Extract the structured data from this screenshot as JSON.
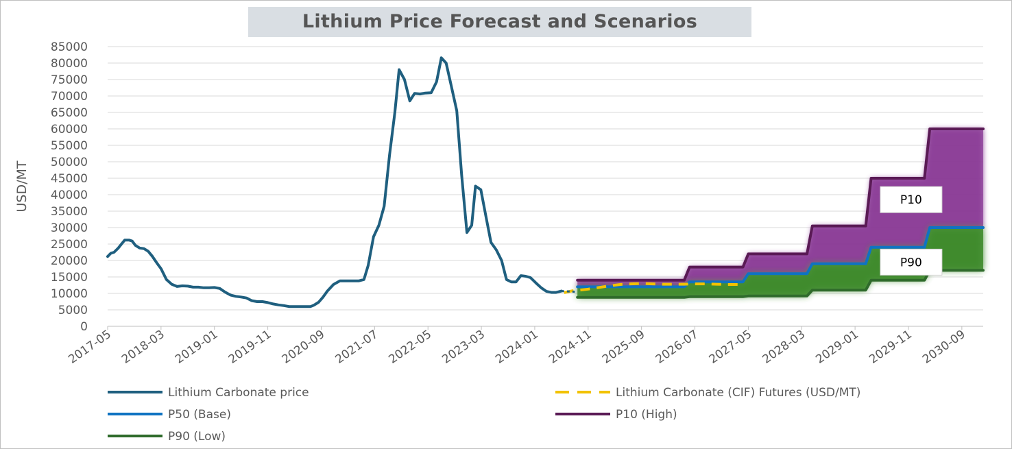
{
  "chart_data": {
    "type": "line",
    "title": "Lithium Price Forecast and Scenarios",
    "xlabel": "",
    "ylabel": "USD/MT",
    "ylim": [
      0,
      85000
    ],
    "yticks": [
      0,
      5000,
      10000,
      15000,
      20000,
      25000,
      30000,
      35000,
      40000,
      45000,
      50000,
      55000,
      60000,
      65000,
      70000,
      75000,
      80000,
      85000
    ],
    "categories": [
      "2017-05",
      "2018-03",
      "2019-01",
      "2019-11",
      "2020-09",
      "2021-07",
      "2022-05",
      "2023-03",
      "2024-01",
      "2024-11",
      "2025-09",
      "2026-07",
      "2027-05",
      "2028-03",
      "2029-01",
      "2029-11",
      "2030-09"
    ],
    "grid": true,
    "colors": {
      "spot": "#1f5f7f",
      "futures": "#f2c200",
      "p50": "#0f73c2",
      "p10": "#5a1a55",
      "p90": "#2f6b2b",
      "p10_band": "#8a3a96",
      "p90_band": "#3d8a2a"
    },
    "series": [
      {
        "name": "Lithium Carbonate price",
        "key": "spot",
        "points": [
          [
            0,
            21200
          ],
          [
            0.6,
            22200
          ],
          [
            1.2,
            22500
          ],
          [
            2.0,
            23800
          ],
          [
            2.6,
            25000
          ],
          [
            3.2,
            26200
          ],
          [
            4.0,
            26200
          ],
          [
            4.6,
            25900
          ],
          [
            5.2,
            24600
          ],
          [
            6.0,
            23800
          ],
          [
            6.8,
            23600
          ],
          [
            7.6,
            22800
          ],
          [
            8.4,
            21200
          ],
          [
            9.2,
            19300
          ],
          [
            10.0,
            17500
          ],
          [
            11.0,
            14200
          ],
          [
            12.0,
            12800
          ],
          [
            13.0,
            12100
          ],
          [
            14.0,
            12300
          ],
          [
            15.0,
            12200
          ],
          [
            16.0,
            11900
          ],
          [
            17.0,
            11900
          ],
          [
            18.0,
            11700
          ],
          [
            19.0,
            11700
          ],
          [
            20.0,
            11800
          ],
          [
            21.0,
            11500
          ],
          [
            22.0,
            10400
          ],
          [
            23.0,
            9500
          ],
          [
            24.0,
            9100
          ],
          [
            25.0,
            8900
          ],
          [
            26.0,
            8600
          ],
          [
            27.0,
            7800
          ],
          [
            28.0,
            7500
          ],
          [
            29.0,
            7500
          ],
          [
            30.0,
            7200
          ],
          [
            31.0,
            6800
          ],
          [
            32.0,
            6500
          ],
          [
            33.0,
            6300
          ],
          [
            34.0,
            6000
          ],
          [
            35.0,
            6000
          ],
          [
            36.0,
            6000
          ],
          [
            37.0,
            6000
          ],
          [
            38.0,
            6000
          ],
          [
            38.6,
            6400
          ],
          [
            39.5,
            7300
          ],
          [
            40.3,
            8800
          ],
          [
            41.2,
            10800
          ],
          [
            42.3,
            12700
          ],
          [
            43.5,
            13800
          ],
          [
            44.5,
            13800
          ],
          [
            46.0,
            13800
          ],
          [
            47.0,
            13800
          ],
          [
            48.0,
            14200
          ],
          [
            48.8,
            18500
          ],
          [
            49.8,
            27200
          ],
          [
            50.8,
            30700
          ],
          [
            51.8,
            36500
          ],
          [
            52.8,
            52000
          ],
          [
            53.8,
            65000
          ],
          [
            54.6,
            78000
          ],
          [
            55.6,
            75000
          ],
          [
            56.6,
            68500
          ],
          [
            57.5,
            70800
          ],
          [
            58.5,
            70600
          ],
          [
            59.5,
            70900
          ],
          [
            60.6,
            71000
          ],
          [
            61.6,
            74300
          ],
          [
            62.5,
            81600
          ],
          [
            63.4,
            80000
          ],
          [
            64.3,
            73500
          ],
          [
            65.4,
            65500
          ],
          [
            66.3,
            46000
          ],
          [
            67.3,
            28500
          ],
          [
            68.2,
            30700
          ],
          [
            68.9,
            42600
          ],
          [
            69.9,
            41500
          ],
          [
            70.9,
            33000
          ],
          [
            71.8,
            25500
          ],
          [
            72.8,
            23200
          ],
          [
            73.8,
            20000
          ],
          [
            74.7,
            14200
          ],
          [
            75.6,
            13500
          ],
          [
            76.5,
            13500
          ],
          [
            77.4,
            15400
          ],
          [
            78.3,
            15200
          ],
          [
            79.2,
            14800
          ],
          [
            80.2,
            13200
          ],
          [
            81.2,
            11700
          ],
          [
            82.2,
            10600
          ],
          [
            83.1,
            10300
          ],
          [
            84.0,
            10300
          ],
          [
            85.0,
            10700
          ]
        ]
      },
      {
        "name": "Lithium Carbonate (CIF) Futures (USD/MT)",
        "key": "futures",
        "dashed": true,
        "points": [
          [
            85.5,
            10200
          ],
          [
            86.5,
            10600
          ],
          [
            87.5,
            10900
          ],
          [
            88.5,
            11000
          ],
          [
            90,
            11300
          ],
          [
            92,
            11800
          ],
          [
            94,
            12300
          ],
          [
            96,
            12700
          ],
          [
            98,
            12900
          ],
          [
            100,
            13000
          ],
          [
            102,
            12900
          ],
          [
            104,
            12800
          ],
          [
            106,
            12800
          ],
          [
            108,
            12800
          ],
          [
            110,
            12900
          ],
          [
            112,
            12900
          ],
          [
            114,
            12800
          ],
          [
            116,
            12700
          ],
          [
            118,
            12700
          ]
        ]
      },
      {
        "name": "P50 (Base)",
        "key": "p50",
        "points": [
          [
            88,
            12000
          ],
          [
            108,
            12000
          ],
          [
            109,
            13500
          ],
          [
            119,
            13500
          ],
          [
            120,
            16000
          ],
          [
            131,
            16000
          ],
          [
            132,
            19000
          ],
          [
            142,
            19000
          ],
          [
            143,
            24000
          ],
          [
            153,
            24000
          ],
          [
            154,
            30000
          ],
          [
            164,
            30000
          ]
        ]
      },
      {
        "name": "P10 (High)",
        "key": "p10",
        "points": [
          [
            88,
            14000
          ],
          [
            108,
            14000
          ],
          [
            109,
            18000
          ],
          [
            119,
            18000
          ],
          [
            120,
            22000
          ],
          [
            131,
            22000
          ],
          [
            132,
            30500
          ],
          [
            142,
            30500
          ],
          [
            143,
            45000
          ],
          [
            153,
            45000
          ],
          [
            154,
            60000
          ],
          [
            164,
            60000
          ]
        ]
      },
      {
        "name": "P90 (Low)",
        "key": "p90",
        "points": [
          [
            88,
            8800
          ],
          [
            108,
            8800
          ],
          [
            109,
            9000
          ],
          [
            119,
            9000
          ],
          [
            120,
            9200
          ],
          [
            131,
            9200
          ],
          [
            132,
            11000
          ],
          [
            142,
            11000
          ],
          [
            143,
            14000
          ],
          [
            153,
            14000
          ],
          [
            154,
            17000
          ],
          [
            164,
            17000
          ]
        ]
      }
    ],
    "annotations": [
      {
        "text": "P10",
        "x": 150.5,
        "y": 38500
      },
      {
        "text": "P90",
        "x": 150.5,
        "y": 19500
      }
    ],
    "legend": {
      "placement": "bottom",
      "entries": [
        {
          "label": "Lithium Carbonate price",
          "key": "spot"
        },
        {
          "label": "Lithium Carbonate (CIF) Futures (USD/MT)",
          "key": "futures"
        },
        {
          "label": "P50 (Base)",
          "key": "p50"
        },
        {
          "label": "P10 (High)",
          "key": "p10"
        },
        {
          "label": "P90 (Low)",
          "key": "p90"
        }
      ]
    }
  }
}
